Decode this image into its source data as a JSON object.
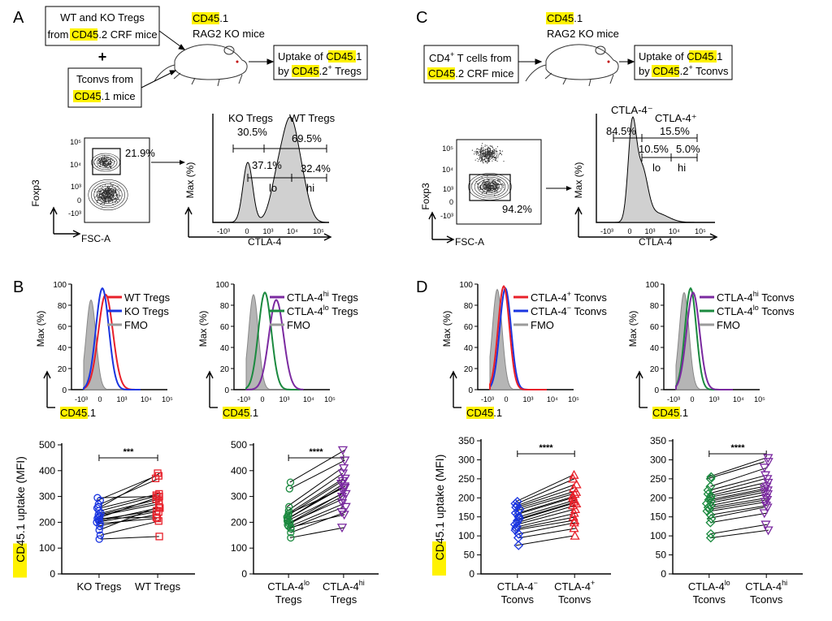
{
  "colors": {
    "wt": "#e8202a",
    "ko": "#1a35e0",
    "fmo": "#9a9a9a",
    "hi": "#7b2aa0",
    "lo": "#1b8a3f",
    "highlight": "#fff200"
  },
  "panel_letters": [
    "A",
    "B",
    "C",
    "D"
  ],
  "panelA": {
    "box1_line1": "WT and KO Tregs",
    "box1_line2_pre": "from ",
    "box1_line2_hl": "CD45",
    "box1_line2_post": ".2 CRF mice",
    "plus": "+",
    "box2_line1": "Tconvs from",
    "box2_line2_hl": "CD45",
    "box2_line2_post": ".1 mice",
    "mouse_line1_hl": "CD45",
    "mouse_line1_post": ".1",
    "mouse_line2": "RAG2 KO mice",
    "result_line1_pre": "Uptake of ",
    "result_line1_hl": "CD45",
    "result_line1_post": ".1",
    "result_line2_pre": "by ",
    "result_line2_hl": "CD45",
    "result_line2_post": ".2",
    "result_line2_sup": "+",
    "result_line2_end": " Tregs",
    "gate_pct": "21.9%",
    "y_label": "Foxp3",
    "x_label": "FSC-A",
    "dot_yticks": [
      "10⁵",
      "10⁴",
      "10³",
      "0",
      "-10³"
    ],
    "hist_ylabel": "Max (%)",
    "hist_xlabel": "CTLA-4",
    "hist_xticks": [
      "-10³",
      "0",
      "10³",
      "10⁴",
      "10⁵"
    ],
    "ko_label": "KO Tregs",
    "wt_label": "WT Tregs",
    "ko_pct": "30.5%",
    "wt_pct": "69.5%",
    "lo_pct": "37.1%",
    "hi_pct": "32.4%",
    "lo": "lo",
    "hi": "hi"
  },
  "panelC": {
    "box_line1_pre": "CD4",
    "box_line1_sup": "+",
    "box_line1_post": " T cells from",
    "box_line2_hl": "CD45",
    "box_line2_post": ".2 CRF mice",
    "mouse_line1_hl": "CD45",
    "mouse_line1_post": ".1",
    "mouse_line2": "RAG2 KO mice",
    "result_line1_pre": "Uptake of ",
    "result_line1_hl": "CD45",
    "result_line1_post": ".1",
    "result_line2_pre": "by ",
    "result_line2_hl": "CD45",
    "result_line2_post": ".2",
    "result_line2_sup": "+",
    "result_line2_end": " Tconvs",
    "gate_pct": "94.2%",
    "y_label": "Foxp3",
    "x_label": "FSC-A",
    "dot_yticks": [
      "10⁵",
      "10⁴",
      "10³",
      "0",
      "-10³"
    ],
    "hist_ylabel": "Max (%)",
    "hist_xlabel": "CTLA-4",
    "hist_xticks": [
      "-10³",
      "0",
      "10³",
      "10⁴",
      "10⁵"
    ],
    "neg_label": "CTLA-4⁻",
    "pos_label": "CTLA-4⁺",
    "neg_pct": "84.5%",
    "pos_pct": "15.5%",
    "lo_pct": "10.5%",
    "hi_pct": "5.0%",
    "lo": "lo",
    "hi": "hi"
  },
  "hist_common": {
    "ylabel": "Max (%)",
    "yticks": [
      "0",
      "20",
      "40",
      "60",
      "80",
      "100"
    ],
    "xticks": [
      "-10³",
      "0",
      "10³",
      "10⁴",
      "10⁵"
    ],
    "xlabel_hl": "CD45",
    "xlabel_post": ".1"
  },
  "legendB1": [
    {
      "text": "WT Tregs",
      "color": "wt"
    },
    {
      "text": "KO Tregs",
      "color": "ko"
    },
    {
      "text": "FMO",
      "color": "fmo"
    }
  ],
  "legendB2": [
    {
      "text": "CTLA-4",
      "sup": "hi",
      "post": " Tregs",
      "color": "hi"
    },
    {
      "text": "CTLA-4",
      "sup": "lo",
      "post": " Tregs",
      "color": "lo"
    },
    {
      "text": "FMO",
      "color": "fmo"
    }
  ],
  "legendD1": [
    {
      "text": "CTLA-4",
      "sup": "+",
      "post": " Tconvs",
      "color": "wt"
    },
    {
      "text": "CTLA-4",
      "sup": "−",
      "post": " Tconvs",
      "color": "ko"
    },
    {
      "text": "FMO",
      "color": "fmo"
    }
  ],
  "legendD2": [
    {
      "text": "CTLA-4",
      "sup": "hi",
      "post": " Tconvs",
      "color": "hi"
    },
    {
      "text": "CTLA-4",
      "sup": "lo",
      "post": " Tconvs",
      "color": "lo"
    },
    {
      "text": "FMO",
      "color": "fmo"
    }
  ],
  "chart_data": [
    {
      "type": "scatter",
      "panel": "B-left",
      "ylabel_hl": "CD45",
      "ylabel_post": ".1 uptake (MFI)",
      "ylim": [
        0,
        500
      ],
      "yticks": [
        "0",
        "100",
        "200",
        "300",
        "400",
        "500"
      ],
      "significance": "***",
      "categories": [
        "KO Tregs",
        "WT Tregs"
      ],
      "series": [
        {
          "name": "KO Tregs",
          "color": "ko",
          "marker": "circle",
          "values": [
            135,
            150,
            170,
            185,
            195,
            200,
            205,
            210,
            215,
            220,
            225,
            230,
            235,
            245,
            255,
            260,
            270,
            285,
            295
          ]
        },
        {
          "name": "WT Tregs",
          "color": "wt",
          "marker": "square",
          "values": [
            145,
            205,
            260,
            230,
            215,
            240,
            255,
            245,
            220,
            300,
            270,
            280,
            290,
            305,
            310,
            390,
            370,
            380,
            300
          ]
        }
      ]
    },
    {
      "type": "scatter",
      "panel": "B-right",
      "ylim": [
        0,
        500
      ],
      "yticks": [
        "0",
        "100",
        "200",
        "300",
        "400",
        "500"
      ],
      "significance": "****",
      "categories": [
        {
          "main": "CTLA-4",
          "sup": "lo",
          "sub": "Tregs"
        },
        {
          "main": "CTLA-4",
          "sup": "hi",
          "sub": "Tregs"
        }
      ],
      "series": [
        {
          "name": "CTLA-4lo Tregs",
          "color": "lo",
          "marker": "circle",
          "values": [
            140,
            160,
            175,
            180,
            185,
            190,
            195,
            200,
            205,
            210,
            215,
            220,
            225,
            230,
            235,
            245,
            260,
            330,
            355
          ]
        },
        {
          "name": "CTLA-4hi Tregs",
          "color": "hi",
          "marker": "triangle-down",
          "values": [
            180,
            240,
            260,
            230,
            275,
            300,
            290,
            320,
            310,
            335,
            350,
            340,
            360,
            330,
            370,
            390,
            410,
            440,
            480
          ]
        }
      ]
    },
    {
      "type": "scatter",
      "panel": "D-left",
      "ylabel_hl": "CD45",
      "ylabel_post": ".1 uptake (MFI)",
      "ylim": [
        0,
        350
      ],
      "yticks": [
        "0",
        "50",
        "100",
        "150",
        "200",
        "250",
        "300",
        "350"
      ],
      "significance": "****",
      "categories": [
        {
          "main": "CTLA-4",
          "sup": "−",
          "sub": "Tconvs"
        },
        {
          "main": "CTLA-4",
          "sup": "+",
          "sub": "Tconvs"
        }
      ],
      "series": [
        {
          "name": "CTLA-4- Tconvs",
          "color": "ko",
          "marker": "diamond",
          "values": [
            75,
            95,
            105,
            115,
            120,
            125,
            130,
            135,
            140,
            145,
            150,
            155,
            160,
            165,
            170,
            175,
            180,
            185,
            190
          ]
        },
        {
          "name": "CTLA-4+ Tconvs",
          "color": "wt",
          "marker": "triangle-up",
          "values": [
            100,
            120,
            135,
            140,
            150,
            160,
            170,
            180,
            185,
            190,
            195,
            200,
            205,
            210,
            215,
            225,
            235,
            250,
            260
          ]
        }
      ]
    },
    {
      "type": "scatter",
      "panel": "D-right",
      "ylim": [
        0,
        350
      ],
      "yticks": [
        "0",
        "50",
        "100",
        "150",
        "200",
        "250",
        "300",
        "350"
      ],
      "significance": "****",
      "categories": [
        {
          "main": "CTLA-4",
          "sup": "lo",
          "sub": "Tconvs"
        },
        {
          "main": "CTLA-4",
          "sup": "hi",
          "sub": "Tconvs"
        }
      ],
      "series": [
        {
          "name": "CTLA-4lo Tconvs",
          "color": "lo",
          "marker": "diamond",
          "values": [
            95,
            105,
            135,
            145,
            155,
            165,
            170,
            175,
            180,
            185,
            190,
            195,
            200,
            205,
            210,
            220,
            230,
            250,
            255
          ]
        },
        {
          "name": "CTLA-4hi Tconvs",
          "color": "hi",
          "marker": "triangle-down",
          "values": [
            115,
            130,
            160,
            175,
            180,
            190,
            195,
            200,
            210,
            215,
            220,
            225,
            230,
            240,
            250,
            260,
            280,
            295,
            305
          ]
        }
      ]
    }
  ]
}
